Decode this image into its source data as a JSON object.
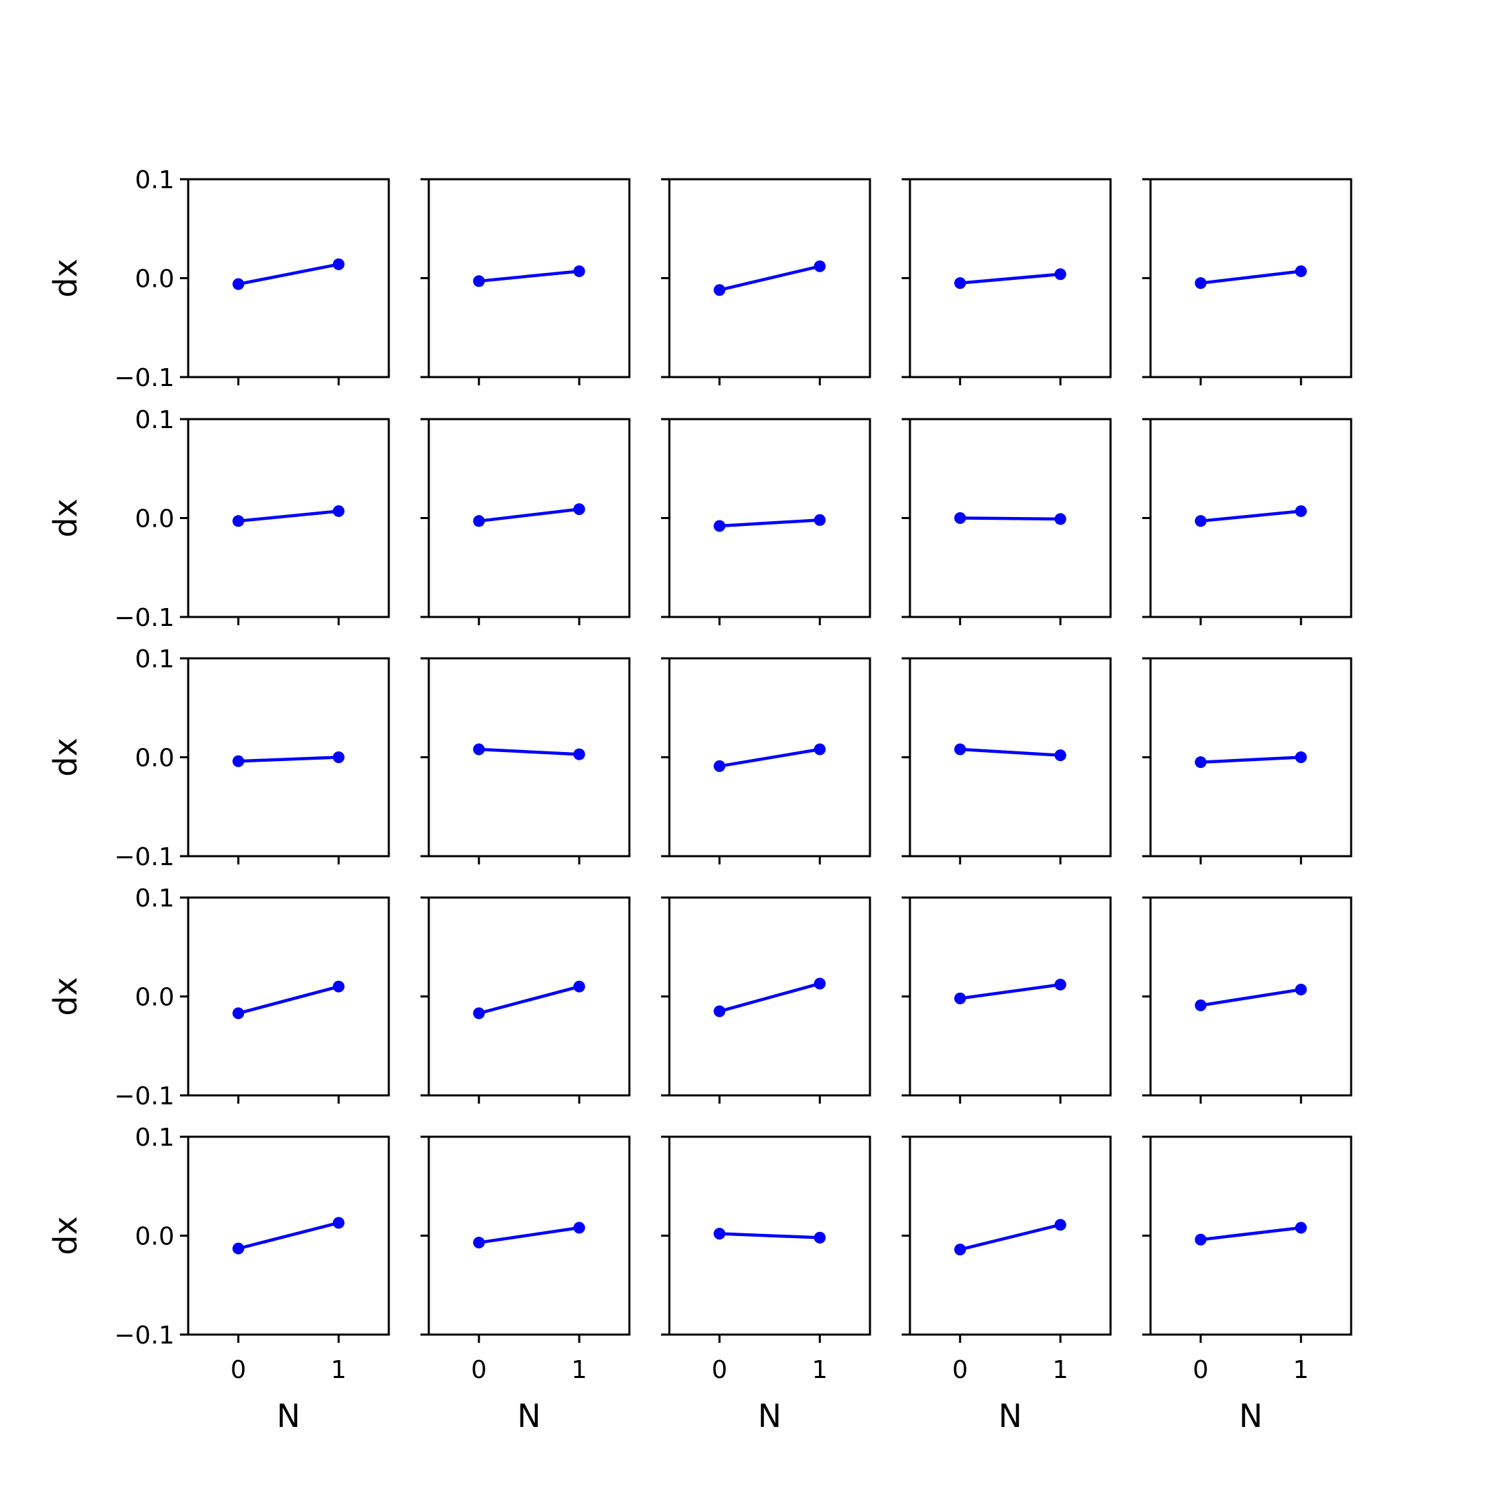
{
  "chart_data": {
    "type": "line",
    "layout": "5x5 grid of small multiples",
    "shared_x_axis": true,
    "shared_y_axis": true,
    "x": [
      0,
      1
    ],
    "x_ticks": [
      "0",
      "1"
    ],
    "xlim": [
      -0.5,
      1.5
    ],
    "ylim": [
      -0.1,
      0.1
    ],
    "y_ticks": [
      "0.1",
      "0.0",
      "−0.1"
    ],
    "xlabel": "N",
    "ylabel": "dx",
    "grid": false,
    "line_color": "#0000ff",
    "marker": "circle",
    "panels": [
      [
        [
          -0.006,
          0.014
        ],
        [
          -0.003,
          0.007
        ],
        [
          -0.012,
          0.012
        ],
        [
          -0.005,
          0.004
        ],
        [
          -0.005,
          0.007
        ]
      ],
      [
        [
          -0.003,
          0.007
        ],
        [
          -0.003,
          0.009
        ],
        [
          -0.008,
          -0.002
        ],
        [
          0.0,
          -0.001
        ],
        [
          -0.003,
          0.007
        ]
      ],
      [
        [
          -0.004,
          0.0
        ],
        [
          0.008,
          0.003
        ],
        [
          -0.009,
          0.008
        ],
        [
          0.008,
          0.002
        ],
        [
          -0.005,
          0.0
        ]
      ],
      [
        [
          -0.017,
          0.01
        ],
        [
          -0.017,
          0.01
        ],
        [
          -0.015,
          0.013
        ],
        [
          -0.002,
          0.012
        ],
        [
          -0.009,
          0.007
        ]
      ],
      [
        [
          -0.013,
          0.013
        ],
        [
          -0.007,
          0.008
        ],
        [
          0.002,
          -0.002
        ],
        [
          -0.014,
          0.011
        ],
        [
          -0.004,
          0.008
        ]
      ]
    ]
  }
}
